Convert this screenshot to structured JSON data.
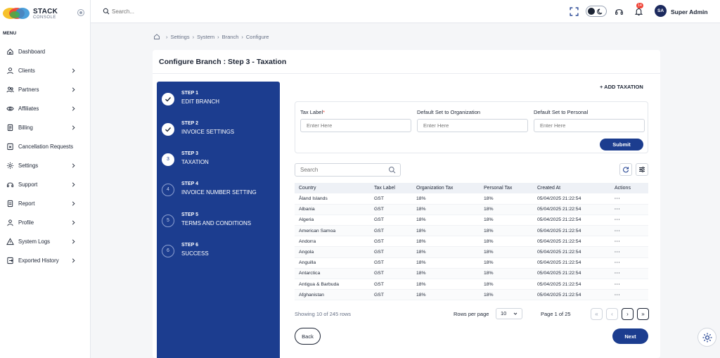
{
  "app": {
    "brand": "STACK",
    "brand_sub": "CONSOLE"
  },
  "sidebar": {
    "menu_label": "MENU",
    "items": [
      {
        "label": "Dashboard",
        "icon": "home-icon",
        "has_children": false
      },
      {
        "label": "Clients",
        "icon": "user-icon",
        "has_children": true
      },
      {
        "label": "Partners",
        "icon": "users-icon",
        "has_children": true
      },
      {
        "label": "Affiliates",
        "icon": "eye-icon",
        "has_children": true
      },
      {
        "label": "Billing",
        "icon": "document-icon",
        "has_children": true
      },
      {
        "label": "Cancellation Requests",
        "icon": "file-cancel-icon",
        "has_children": false
      },
      {
        "label": "Settings",
        "icon": "gear-icon",
        "has_children": true
      },
      {
        "label": "Support",
        "icon": "headset-icon",
        "has_children": true
      },
      {
        "label": "Report",
        "icon": "report-icon",
        "has_children": true
      },
      {
        "label": "Profile",
        "icon": "profile-icon",
        "has_children": true
      },
      {
        "label": "System Logs",
        "icon": "warning-icon",
        "has_children": true
      },
      {
        "label": "Exported History",
        "icon": "export-icon",
        "has_children": true
      }
    ]
  },
  "header": {
    "search_placeholder": "Search...",
    "notification_count": "14",
    "avatar_initials": "SA",
    "user_name": "Super Admin"
  },
  "breadcrumb": [
    "Settings",
    "System",
    "Branch",
    "Configure"
  ],
  "page": {
    "title": "Configure Branch : Step 3 - Taxation"
  },
  "steps": [
    {
      "num": "STEP 1",
      "name": "EDIT BRANCH",
      "status": "done",
      "index": "1"
    },
    {
      "num": "STEP 2",
      "name": "INVOICE SETTINGS",
      "status": "done",
      "index": "2"
    },
    {
      "num": "STEP 3",
      "name": "TAXATION",
      "status": "active",
      "index": "3"
    },
    {
      "num": "STEP 4",
      "name": "INVOICE NUMBER SETTING",
      "status": "todo",
      "index": "4"
    },
    {
      "num": "STEP 5",
      "name": "TERMS AND CONDITIONS",
      "status": "todo",
      "index": "5"
    },
    {
      "num": "STEP 6",
      "name": "SUCCESS",
      "status": "todo",
      "index": "6"
    }
  ],
  "form": {
    "add_label": "+ ADD TAXATION",
    "tax_label": "Tax Label",
    "tax_required": "*",
    "tax_placeholder": "Enter Here",
    "org_label": "Default Set to Organization",
    "org_placeholder": "Enter Here",
    "personal_label": "Default Set to Personal",
    "personal_placeholder": "Enter Here",
    "submit_label": "Submit"
  },
  "table": {
    "search_placeholder": "Search",
    "columns": [
      "Country",
      "Tax Label",
      "Organization Tax",
      "Personal Tax",
      "Created At",
      "Actions"
    ],
    "rows": [
      [
        "Åland Islands",
        "GST",
        "18%",
        "18%",
        "05/04/2025 21:22:54",
        "···"
      ],
      [
        "Albania",
        "GST",
        "18%",
        "18%",
        "05/04/2025 21:22:54",
        "···"
      ],
      [
        "Algeria",
        "GST",
        "18%",
        "18%",
        "05/04/2025 21:22:54",
        "···"
      ],
      [
        "American Samoa",
        "GST",
        "18%",
        "18%",
        "05/04/2025 21:22:54",
        "···"
      ],
      [
        "Andorra",
        "GST",
        "18%",
        "18%",
        "05/04/2025 21:22:54",
        "···"
      ],
      [
        "Angola",
        "GST",
        "18%",
        "18%",
        "05/04/2025 21:22:54",
        "···"
      ],
      [
        "Anguilla",
        "GST",
        "18%",
        "18%",
        "05/04/2025 21:22:54",
        "···"
      ],
      [
        "Antarctica",
        "GST",
        "18%",
        "18%",
        "05/04/2025 21:22:54",
        "···"
      ],
      [
        "Antigua & Barbuda",
        "GST",
        "18%",
        "18%",
        "05/04/2025 21:22:54",
        "···"
      ],
      [
        "Afghanistan",
        "GST",
        "18%",
        "18%",
        "05/04/2025 21:22:54",
        "···"
      ]
    ]
  },
  "pagination": {
    "showing": "Showing 10 of 245 rows",
    "rows_per_page_label": "Rows per page",
    "rows_per_page": "10",
    "page_info": "Page 1 of 25",
    "first": "«",
    "prev": "‹",
    "next": "›",
    "last": "»"
  },
  "actions": {
    "back": "Back",
    "next": "Next"
  },
  "colors": {
    "primary": "#1c3d8f",
    "badge": "#f04438",
    "text": "#1c2434"
  }
}
